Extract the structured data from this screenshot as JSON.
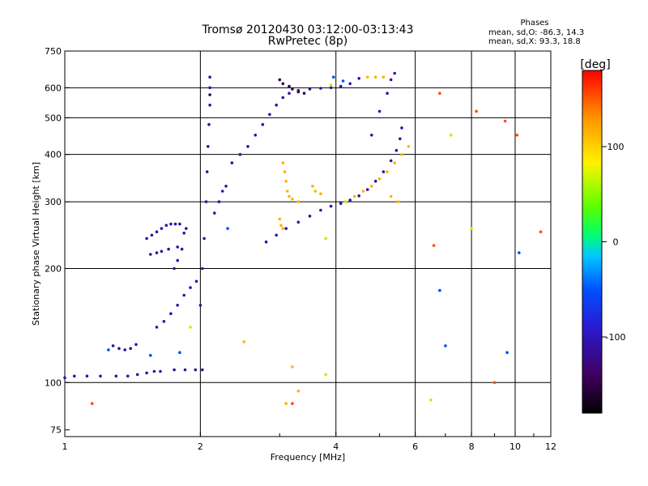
{
  "chart_data": {
    "type": "scatter",
    "title": "Tromsø 20120430 03:12:00-03:13:43",
    "subtitle": "RwPretec (8p)",
    "xlabel": "Frequency [MHz]",
    "ylabel": "Stationary phase Virtual Height [km]",
    "x_scale": "log",
    "y_scale": "log",
    "xlim": [
      1,
      12
    ],
    "ylim": [
      72,
      750
    ],
    "x_ticks": [
      1,
      2,
      4,
      6,
      8,
      10,
      12
    ],
    "x_tick_labels": [
      "1",
      "2",
      "4",
      "6",
      "8",
      "10",
      "12"
    ],
    "x_gridlines": [
      2,
      4,
      6,
      8,
      10
    ],
    "y_ticks": [
      75,
      100,
      200,
      300,
      400,
      500,
      600,
      750
    ],
    "y_tick_labels": [
      "75",
      "100",
      "200",
      "300",
      "400",
      "500",
      "600",
      "750"
    ],
    "y_gridlines": [
      100,
      200,
      300,
      400,
      500,
      600
    ],
    "grid": true,
    "color_scale": {
      "label": "[deg]",
      "min": -180,
      "max": 180,
      "tick_values": [
        100,
        0,
        -100
      ],
      "tick_labels": [
        "100",
        "0",
        "-100"
      ],
      "colors": [
        "#000000",
        "#400060",
        "#2a1ad0",
        "#0050ff",
        "#00c8ff",
        "#00ff70",
        "#58ff00",
        "#fff200",
        "#ff9600",
        "#ff0000"
      ]
    },
    "phase_stats": {
      "title": "Phases",
      "lines": [
        "mean, sd,O:  -86.3, 14.3",
        "mean, sd,X:  93.3, 18.8"
      ]
    },
    "series": [
      {
        "phase_deg": -110,
        "points": [
          [
            1.0,
            103
          ],
          [
            1.05,
            104
          ],
          [
            1.12,
            104
          ],
          [
            1.2,
            104
          ],
          [
            1.3,
            104
          ],
          [
            1.38,
            104
          ],
          [
            1.45,
            105
          ],
          [
            1.52,
            106
          ],
          [
            1.58,
            107
          ],
          [
            1.63,
            107
          ],
          [
            1.75,
            108
          ],
          [
            1.85,
            108
          ],
          [
            1.95,
            108
          ],
          [
            2.02,
            108
          ],
          [
            1.28,
            125
          ],
          [
            1.32,
            123
          ],
          [
            1.36,
            122
          ],
          [
            1.4,
            123
          ],
          [
            1.44,
            126
          ],
          [
            1.6,
            140
          ],
          [
            1.66,
            145
          ],
          [
            1.72,
            152
          ],
          [
            1.78,
            160
          ],
          [
            1.84,
            170
          ],
          [
            1.9,
            178
          ],
          [
            1.96,
            185
          ],
          [
            1.75,
            200
          ],
          [
            1.78,
            210
          ],
          [
            1.82,
            225
          ],
          [
            1.84,
            248
          ],
          [
            1.86,
            255
          ],
          [
            1.52,
            240
          ],
          [
            1.56,
            245
          ],
          [
            1.6,
            250
          ],
          [
            1.64,
            255
          ],
          [
            1.68,
            260
          ],
          [
            1.72,
            262
          ],
          [
            1.76,
            262
          ],
          [
            1.8,
            262
          ],
          [
            1.55,
            218
          ],
          [
            1.6,
            220
          ],
          [
            1.64,
            222
          ],
          [
            1.7,
            225
          ],
          [
            1.78,
            228
          ],
          [
            2.0,
            160
          ],
          [
            2.02,
            200
          ],
          [
            2.04,
            240
          ],
          [
            2.06,
            300
          ],
          [
            2.07,
            360
          ],
          [
            2.08,
            420
          ],
          [
            2.09,
            480
          ],
          [
            2.1,
            540
          ],
          [
            2.1,
            600
          ],
          [
            2.1,
            640
          ],
          [
            2.15,
            280
          ],
          [
            2.2,
            300
          ],
          [
            2.24,
            320
          ],
          [
            2.28,
            330
          ],
          [
            2.35,
            380
          ],
          [
            2.45,
            400
          ],
          [
            2.55,
            420
          ],
          [
            2.65,
            450
          ],
          [
            2.75,
            480
          ],
          [
            2.85,
            510
          ],
          [
            2.95,
            540
          ],
          [
            3.05,
            565
          ],
          [
            3.15,
            580
          ],
          [
            3.3,
            590
          ],
          [
            3.5,
            595
          ],
          [
            3.7,
            598
          ],
          [
            3.9,
            600
          ],
          [
            4.1,
            605
          ],
          [
            4.3,
            615
          ],
          [
            4.5,
            635
          ],
          [
            2.8,
            235
          ],
          [
            2.95,
            245
          ],
          [
            3.1,
            255
          ],
          [
            3.3,
            265
          ],
          [
            3.5,
            275
          ],
          [
            3.7,
            285
          ],
          [
            3.9,
            292
          ],
          [
            4.1,
            297
          ],
          [
            4.3,
            303
          ],
          [
            4.5,
            311
          ],
          [
            4.7,
            323
          ],
          [
            4.9,
            340
          ],
          [
            5.1,
            360
          ],
          [
            5.3,
            385
          ],
          [
            5.45,
            410
          ],
          [
            5.55,
            440
          ],
          [
            5.6,
            470
          ],
          [
            4.8,
            450
          ],
          [
            5.0,
            520
          ],
          [
            5.2,
            580
          ],
          [
            5.3,
            630
          ],
          [
            5.4,
            655
          ]
        ]
      },
      {
        "phase_deg": -150,
        "points": [
          [
            2.1,
            575
          ],
          [
            3.0,
            630
          ],
          [
            3.05,
            615
          ],
          [
            3.15,
            605
          ],
          [
            3.2,
            595
          ],
          [
            3.3,
            585
          ],
          [
            3.4,
            580
          ]
        ]
      },
      {
        "phase_deg": 115,
        "points": [
          [
            3.05,
            380
          ],
          [
            3.08,
            360
          ],
          [
            3.1,
            340
          ],
          [
            3.12,
            320
          ],
          [
            3.15,
            310
          ],
          [
            3.2,
            305
          ],
          [
            3.3,
            300
          ],
          [
            3.0,
            270
          ],
          [
            3.02,
            260
          ],
          [
            3.05,
            255
          ],
          [
            3.55,
            330
          ],
          [
            3.6,
            320
          ],
          [
            3.7,
            315
          ],
          [
            4.4,
            310
          ],
          [
            4.6,
            320
          ],
          [
            4.8,
            330
          ],
          [
            5.0,
            345
          ],
          [
            5.2,
            360
          ],
          [
            5.4,
            380
          ],
          [
            5.6,
            400
          ],
          [
            5.8,
            420
          ],
          [
            4.7,
            640
          ],
          [
            4.9,
            640
          ],
          [
            5.1,
            640
          ],
          [
            2.5,
            128
          ],
          [
            3.2,
            110
          ],
          [
            3.3,
            95
          ],
          [
            3.1,
            88
          ],
          [
            5.3,
            310
          ],
          [
            5.5,
            300
          ]
        ]
      },
      {
        "phase_deg": 60,
        "points": [
          [
            3.8,
            240
          ],
          [
            4.2,
            300
          ],
          [
            3.8,
            105
          ],
          [
            1.9,
            140
          ],
          [
            6.5,
            90
          ],
          [
            8.0,
            255
          ],
          [
            7.2,
            450
          ],
          [
            3.9,
            610
          ]
        ]
      },
      {
        "phase_deg": -55,
        "points": [
          [
            3.95,
            640
          ],
          [
            4.15,
            625
          ],
          [
            1.25,
            122
          ],
          [
            1.55,
            118
          ],
          [
            1.8,
            120
          ],
          [
            7.0,
            125
          ],
          [
            9.6,
            120
          ],
          [
            10.2,
            220
          ],
          [
            6.8,
            175
          ],
          [
            2.3,
            255
          ]
        ]
      },
      {
        "phase_deg": 155,
        "points": [
          [
            1.15,
            88
          ],
          [
            6.8,
            580
          ],
          [
            6.6,
            230
          ],
          [
            9.0,
            100
          ],
          [
            11.4,
            250
          ],
          [
            8.2,
            520
          ],
          [
            9.5,
            490
          ],
          [
            3.2,
            88
          ],
          [
            10.1,
            450
          ]
        ]
      }
    ]
  }
}
